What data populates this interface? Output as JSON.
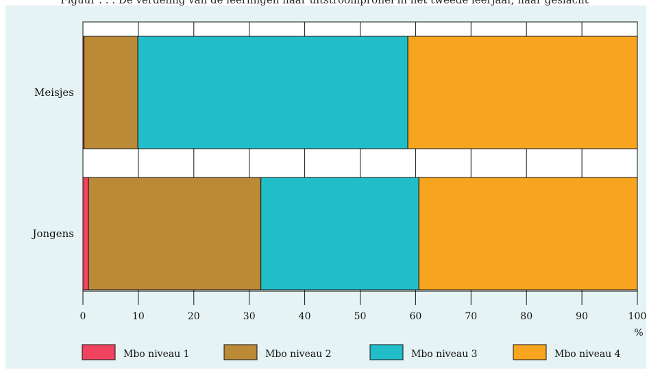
{
  "header_fragment": "Figuur . . . De verdeling van de leerlingen naar uitstroomprofiel in het tweede leerjaar, naar geslacht",
  "chart_data": {
    "type": "bar",
    "orientation": "horizontal",
    "stacked": true,
    "categories": [
      "Meisjes",
      "Jongens"
    ],
    "series": [
      {
        "name": "Mbo niveau 1",
        "color": "#f0435f",
        "values": [
          0.2,
          1.0
        ]
      },
      {
        "name": "Mbo niveau 2",
        "color": "#bb8a37",
        "values": [
          9.7,
          31.1
        ]
      },
      {
        "name": "Mbo niveau 3",
        "color": "#21bec9",
        "values": [
          48.7,
          28.5
        ]
      },
      {
        "name": "Mbo niveau 4",
        "color": "#f7a51e",
        "values": [
          41.4,
          39.4
        ]
      }
    ],
    "xlim": [
      0,
      100
    ],
    "xticks": [
      "0",
      "10",
      "20",
      "30",
      "40",
      "50",
      "60",
      "70",
      "80",
      "90",
      "100"
    ],
    "xlabel": "%",
    "grid": true,
    "legend_position": "bottom"
  }
}
